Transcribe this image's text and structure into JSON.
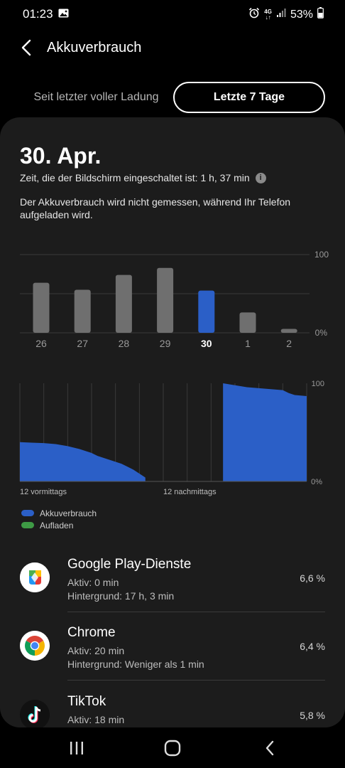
{
  "status_bar": {
    "time": "01:23",
    "network_top": "4G",
    "network_arrows": "↓↑",
    "battery": "53%"
  },
  "header": {
    "title": "Akkuverbrauch"
  },
  "segmented": {
    "options": [
      "Seit letzter voller Ladung",
      "Letzte 7 Tage"
    ],
    "selected": "Letzte 7 Tage"
  },
  "summary": {
    "date": "30. Apr.",
    "screen_on_time": "Zeit, die der Bildschirm eingeschaltet ist: 1 h, 37 min",
    "note": "Der Akkuverbrauch wird nicht gemessen, während Ihr Telefon aufgeladen wird."
  },
  "chart_data": [
    {
      "type": "bar",
      "categories": [
        "26",
        "27",
        "28",
        "29",
        "30",
        "1",
        "2"
      ],
      "values": [
        64,
        55,
        74,
        83,
        54,
        26,
        5
      ],
      "selected_category": "30",
      "ylim": [
        0,
        100
      ],
      "ytick_labels": [
        "100",
        "0%"
      ],
      "colors": {
        "default": "#6f6f6f",
        "selected": "#2b5fc7"
      }
    },
    {
      "type": "area",
      "ylim": [
        0,
        100
      ],
      "ytick_labels": [
        "100",
        "0%"
      ],
      "xtick_labels": [
        "12 vormittags",
        "12 nachmittags"
      ],
      "x_hours": [
        0,
        1,
        2,
        3,
        4,
        5,
        5.5,
        6,
        6.5,
        7,
        7.5,
        8,
        8.5,
        9,
        9.5,
        10,
        10.5,
        11,
        16.7,
        17,
        18,
        19,
        20,
        21,
        22,
        22.5,
        23,
        24
      ],
      "values": [
        40,
        39.5,
        39,
        38,
        36,
        33,
        31,
        29,
        26,
        24,
        22,
        20,
        18,
        15,
        12,
        8,
        4,
        0,
        0,
        100,
        98,
        96,
        95,
        94,
        93,
        90,
        88,
        87
      ],
      "segments": [
        [
          0,
          10.8
        ],
        [
          16.8,
          24
        ]
      ],
      "legend": [
        {
          "label": "Akkuverbrauch",
          "color": "#2b5fc7"
        },
        {
          "label": "Aufladen",
          "color": "#3e9a45"
        }
      ]
    }
  ],
  "apps": [
    {
      "name": "Google Play-Dienste",
      "active": "Aktiv: 0 min",
      "background": "Hintergrund: 17 h, 3 min",
      "percent": "6,6 %",
      "icon": "google-play-services-icon"
    },
    {
      "name": "Chrome",
      "active": "Aktiv: 20 min",
      "background": "Hintergrund: Weniger als 1 min",
      "percent": "6,4 %",
      "icon": "chrome-icon"
    },
    {
      "name": "TikTok",
      "active": "Aktiv: 18 min",
      "background": "",
      "percent": "5,8 %",
      "icon": "tiktok-icon"
    }
  ]
}
